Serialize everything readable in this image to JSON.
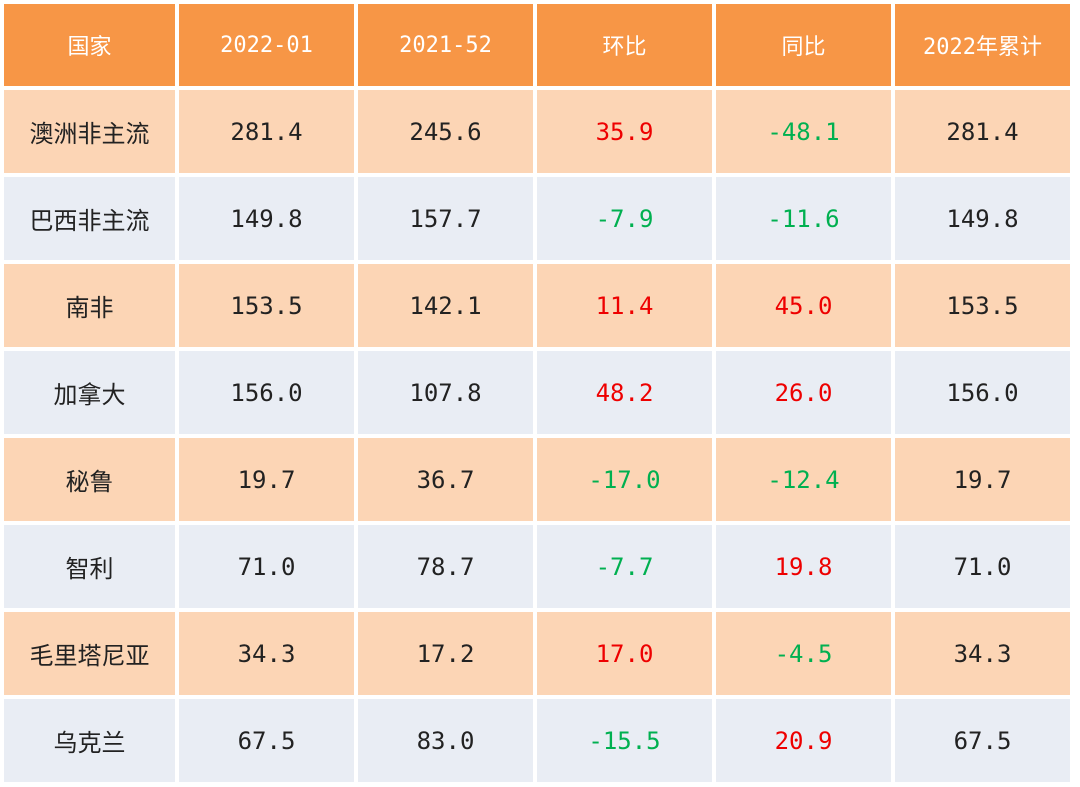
{
  "chart_data": {
    "type": "table",
    "columns": [
      "国家",
      "2022-01",
      "2021-52",
      "环比",
      "同比",
      "2022年累计"
    ],
    "rows": [
      [
        "澳洲非主流",
        "281.4",
        "245.6",
        "35.9",
        "-48.1",
        "281.4"
      ],
      [
        "巴西非主流",
        "149.8",
        "157.7",
        "-7.9",
        "-11.6",
        "149.8"
      ],
      [
        "南非",
        "153.5",
        "142.1",
        "11.4",
        "45.0",
        "153.5"
      ],
      [
        "加拿大",
        "156.0",
        "107.8",
        "48.2",
        "26.0",
        "156.0"
      ],
      [
        "秘鲁",
        "19.7",
        "36.7",
        "-17.0",
        "-12.4",
        "19.7"
      ],
      [
        "智利",
        "71.0",
        "78.7",
        "-7.7",
        "19.8",
        "71.0"
      ],
      [
        "毛里塔尼亚",
        "34.3",
        "17.2",
        "17.0",
        "-4.5",
        "34.3"
      ],
      [
        "乌克兰",
        "67.5",
        "83.0",
        "-15.5",
        "20.9",
        "67.5"
      ]
    ],
    "colors": {
      "header_bg": "#f79646",
      "header_text": "#ffffff",
      "row_odd_bg": "#fcd5b5",
      "row_even_bg": "#e9edf4",
      "positive_change": "#ee0000",
      "negative_change": "#00b050"
    }
  }
}
